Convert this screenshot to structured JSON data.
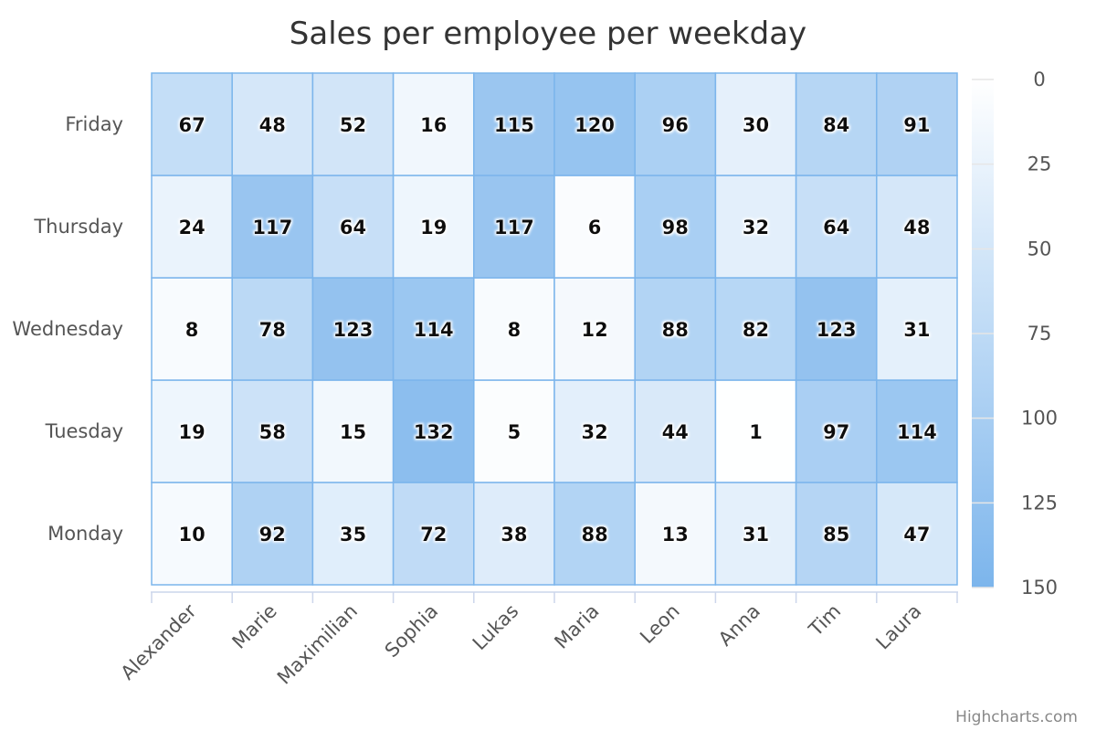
{
  "chart_data": {
    "type": "heatmap",
    "title": "Sales per employee per weekday",
    "x_categories": [
      "Alexander",
      "Marie",
      "Maximilian",
      "Sophia",
      "Lukas",
      "Maria",
      "Leon",
      "Anna",
      "Tim",
      "Laura"
    ],
    "y_categories": [
      "Monday",
      "Tuesday",
      "Wednesday",
      "Thursday",
      "Friday"
    ],
    "values": [
      [
        10,
        19,
        8,
        24,
        67
      ],
      [
        92,
        58,
        78,
        117,
        48
      ],
      [
        35,
        15,
        123,
        64,
        52
      ],
      [
        72,
        132,
        114,
        19,
        16
      ],
      [
        38,
        5,
        8,
        117,
        115
      ],
      [
        88,
        32,
        12,
        6,
        120
      ],
      [
        13,
        44,
        88,
        98,
        96
      ],
      [
        31,
        1,
        82,
        32,
        30
      ],
      [
        85,
        97,
        123,
        64,
        84
      ],
      [
        47,
        114,
        31,
        48,
        91
      ]
    ],
    "color_axis": {
      "min": 0,
      "max": 150,
      "ticks": [
        0,
        25,
        50,
        75,
        100,
        125,
        150
      ],
      "min_color": "#ffffff",
      "max_color": "#7cb5ec"
    },
    "legend_position": "right",
    "credits": "Highcharts.com"
  }
}
